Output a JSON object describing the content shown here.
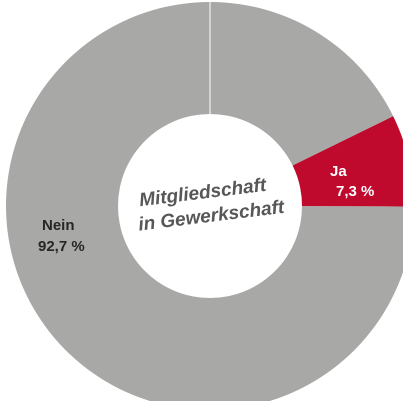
{
  "chart_data": {
    "type": "pie",
    "donut": true,
    "center_label": [
      "Mitgliedschaft",
      "in Gewerkschaft"
    ],
    "slices": [
      {
        "label": "Ja",
        "value": 7.3,
        "value_label": "7,3 %",
        "color": "#c00a2d",
        "text_color": "#ffffff"
      },
      {
        "label": "Nein",
        "value": 92.7,
        "value_label": "92,7 %",
        "color": "#a8a8a6",
        "text_color": "#262626"
      }
    ],
    "separator_color": "#ffffff",
    "legend": "none"
  }
}
